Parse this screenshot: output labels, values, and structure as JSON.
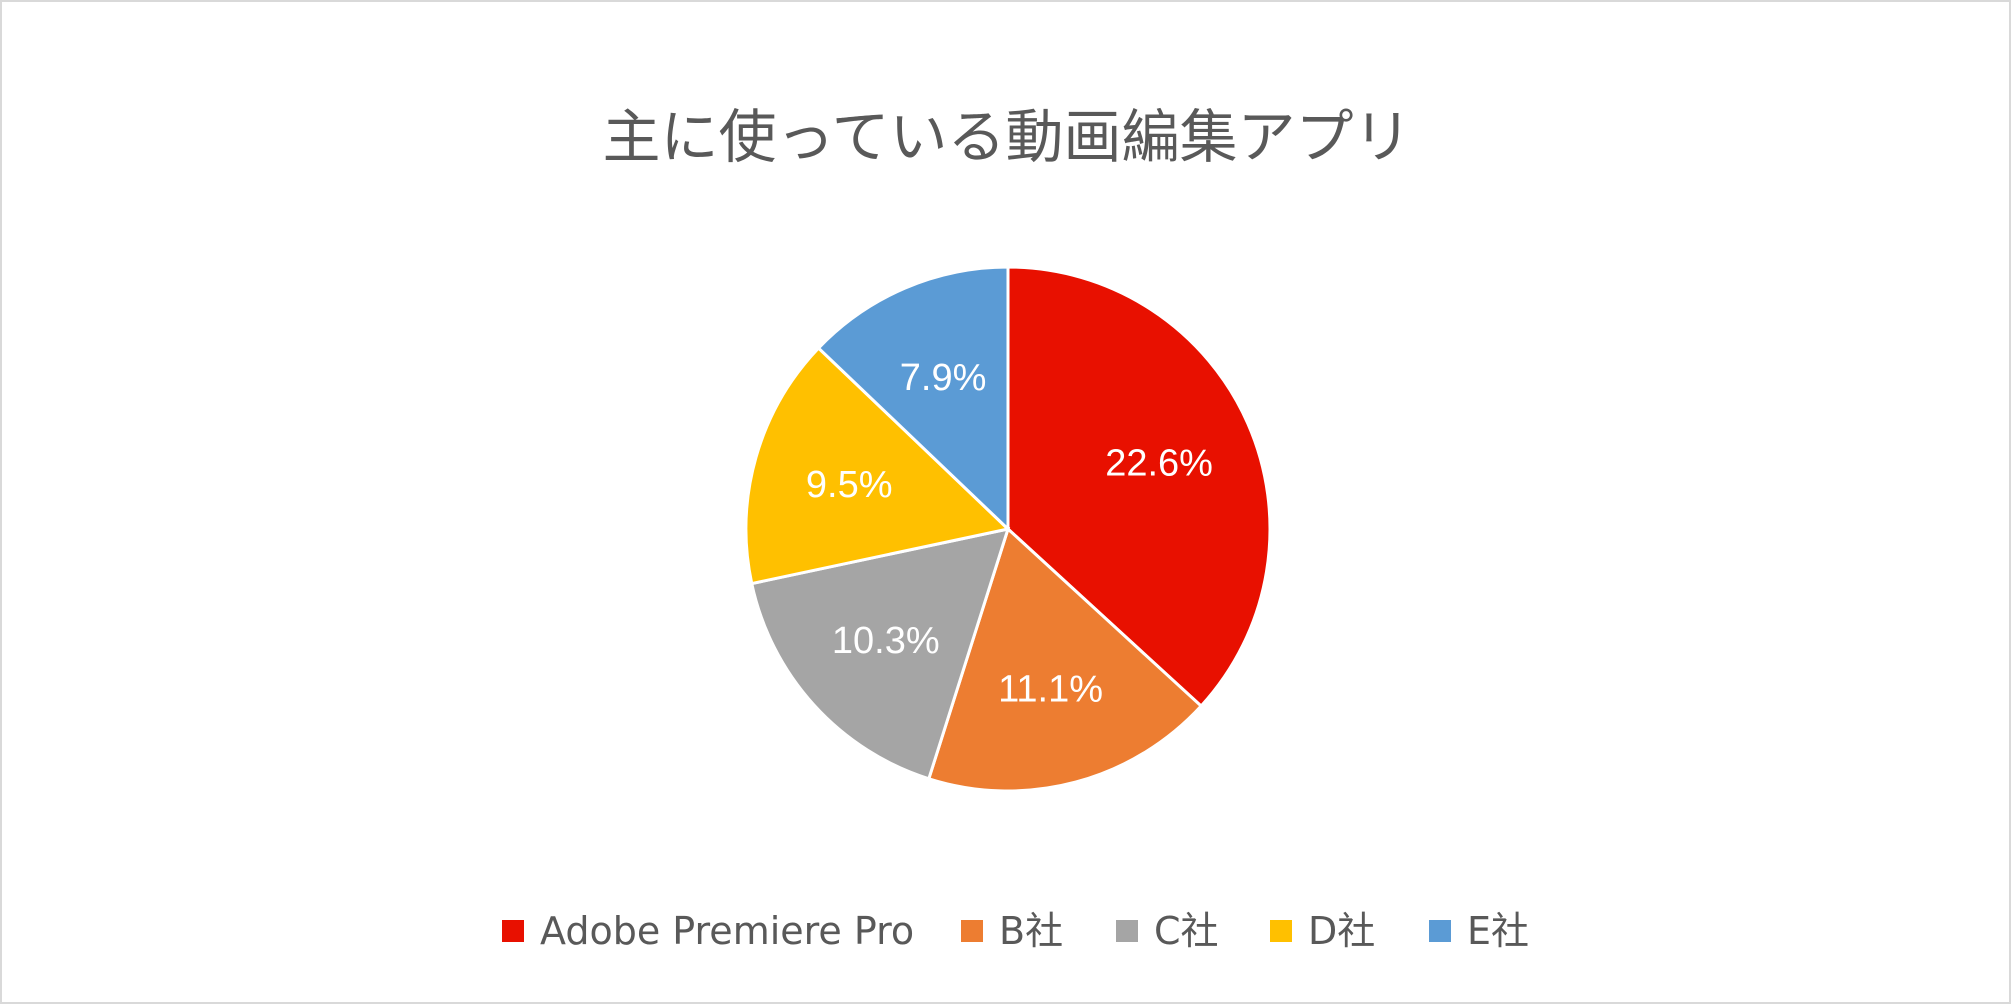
{
  "chart_data": {
    "type": "pie",
    "title": "主に使っている動画編集アプリ",
    "categories": [
      "Adobe Premiere Pro",
      "B社",
      "C社",
      "D社",
      "E社"
    ],
    "values": [
      22.6,
      11.1,
      10.3,
      9.5,
      7.9
    ],
    "labels": [
      "22.6%",
      "11.1%",
      "10.3%",
      "9.5%",
      "7.9%"
    ],
    "colors": [
      "#e81000",
      "#ed7d31",
      "#a5a5a5",
      "#ffc000",
      "#5b9bd5"
    ],
    "legend_position": "bottom",
    "start_angle": "12 o'clock",
    "direction": "clockwise"
  }
}
